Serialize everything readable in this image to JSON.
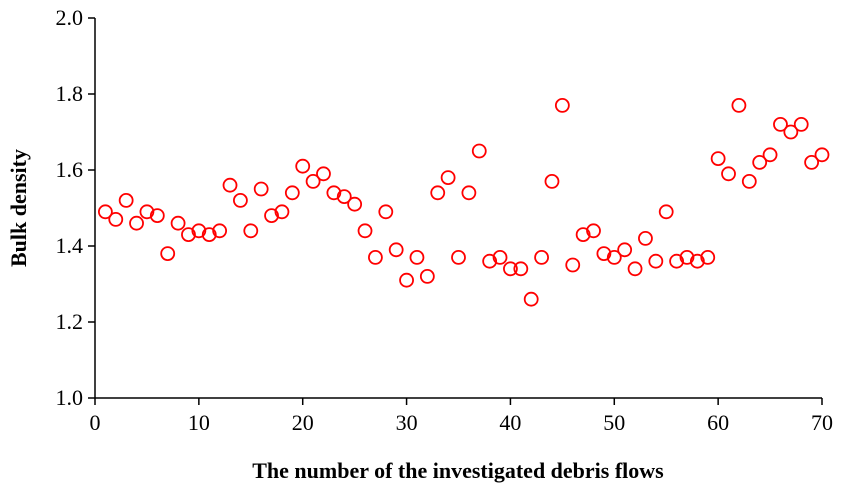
{
  "chart_data": {
    "type": "scatter",
    "xlabel": "The number of the investigated debris flows",
    "ylabel": "Bulk density",
    "color": "#ff0000",
    "marker": "open-circle",
    "grid": false,
    "xlim": [
      0,
      70
    ],
    "ylim": [
      1.0,
      2.0
    ],
    "xticks": [
      0,
      10,
      20,
      30,
      40,
      50,
      60,
      70
    ],
    "yticks": [
      {
        "value": 1.0,
        "label": "1.0"
      },
      {
        "value": 1.2,
        "label": "1.2"
      },
      {
        "value": 1.4,
        "label": "1.4"
      },
      {
        "value": 1.6,
        "label": "1.6"
      },
      {
        "value": 1.8,
        "label": "1.8"
      },
      {
        "value": 2.0,
        "label": "2.0"
      }
    ],
    "x": [
      1,
      2,
      3,
      4,
      5,
      6,
      7,
      8,
      9,
      10,
      11,
      12,
      13,
      14,
      15,
      16,
      17,
      18,
      19,
      20,
      21,
      22,
      23,
      24,
      25,
      26,
      27,
      28,
      29,
      30,
      31,
      32,
      33,
      34,
      35,
      36,
      37,
      38,
      39,
      40,
      41,
      42,
      43,
      44,
      45,
      46,
      47,
      48,
      49,
      50,
      51,
      52,
      53,
      54,
      55,
      56,
      57,
      58,
      59,
      60,
      61,
      62,
      63,
      64,
      65,
      66,
      67,
      68,
      69,
      70
    ],
    "values": [
      1.49,
      1.47,
      1.52,
      1.46,
      1.49,
      1.48,
      1.38,
      1.46,
      1.43,
      1.44,
      1.43,
      1.44,
      1.56,
      1.52,
      1.44,
      1.55,
      1.48,
      1.49,
      1.54,
      1.61,
      1.57,
      1.59,
      1.54,
      1.53,
      1.51,
      1.44,
      1.37,
      1.49,
      1.39,
      1.31,
      1.37,
      1.32,
      1.54,
      1.58,
      1.37,
      1.54,
      1.65,
      1.36,
      1.37,
      1.34,
      1.34,
      1.26,
      1.37,
      1.57,
      1.77,
      1.35,
      1.43,
      1.44,
      1.38,
      1.37,
      1.39,
      1.34,
      1.42,
      1.36,
      1.49,
      1.36,
      1.37,
      1.36,
      1.37,
      1.63,
      1.59,
      1.77,
      1.57,
      1.62,
      1.64,
      1.72,
      1.7,
      1.72,
      1.62,
      1.64
    ]
  }
}
